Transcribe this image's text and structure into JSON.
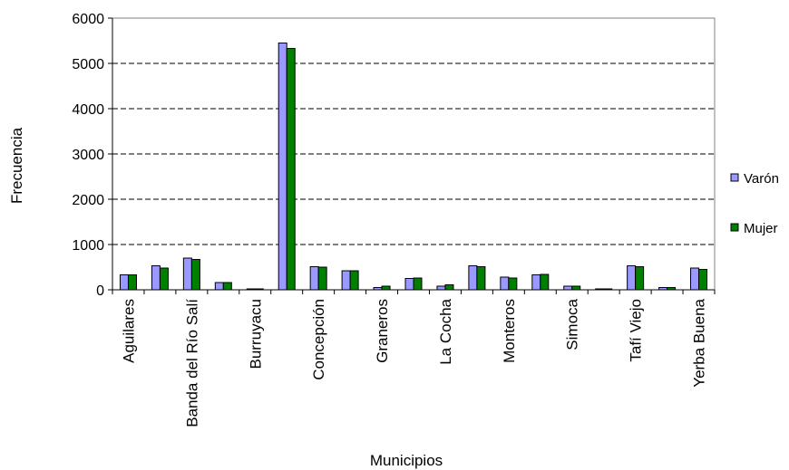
{
  "chart_data": {
    "type": "bar",
    "title": "",
    "xlabel": "Municipios",
    "ylabel": "Frecuencia",
    "ylim": [
      0,
      6000
    ],
    "yticks": [
      0,
      1000,
      2000,
      3000,
      4000,
      5000,
      6000
    ],
    "grid": "horizontal dashed",
    "legend_position": "right",
    "categories": [
      "Aguilares",
      "",
      "Banda del Río Salí",
      "",
      "Burruyacu",
      "",
      "Concepción",
      "",
      "Graneros",
      "",
      "La Cocha",
      "",
      "Monteros",
      "",
      "Simoca",
      "",
      "Tafí Viejo",
      "",
      "Yerba Buena"
    ],
    "series": [
      {
        "name": "Varón",
        "color": "#9999ff",
        "values": [
          330,
          530,
          700,
          160,
          20,
          5450,
          510,
          420,
          50,
          250,
          80,
          530,
          280,
          330,
          80,
          20,
          530,
          50,
          480
        ]
      },
      {
        "name": "Mujer",
        "color": "#008000",
        "values": [
          330,
          480,
          670,
          160,
          20,
          5330,
          500,
          420,
          80,
          260,
          110,
          510,
          260,
          340,
          80,
          20,
          510,
          50,
          450
        ]
      }
    ]
  }
}
